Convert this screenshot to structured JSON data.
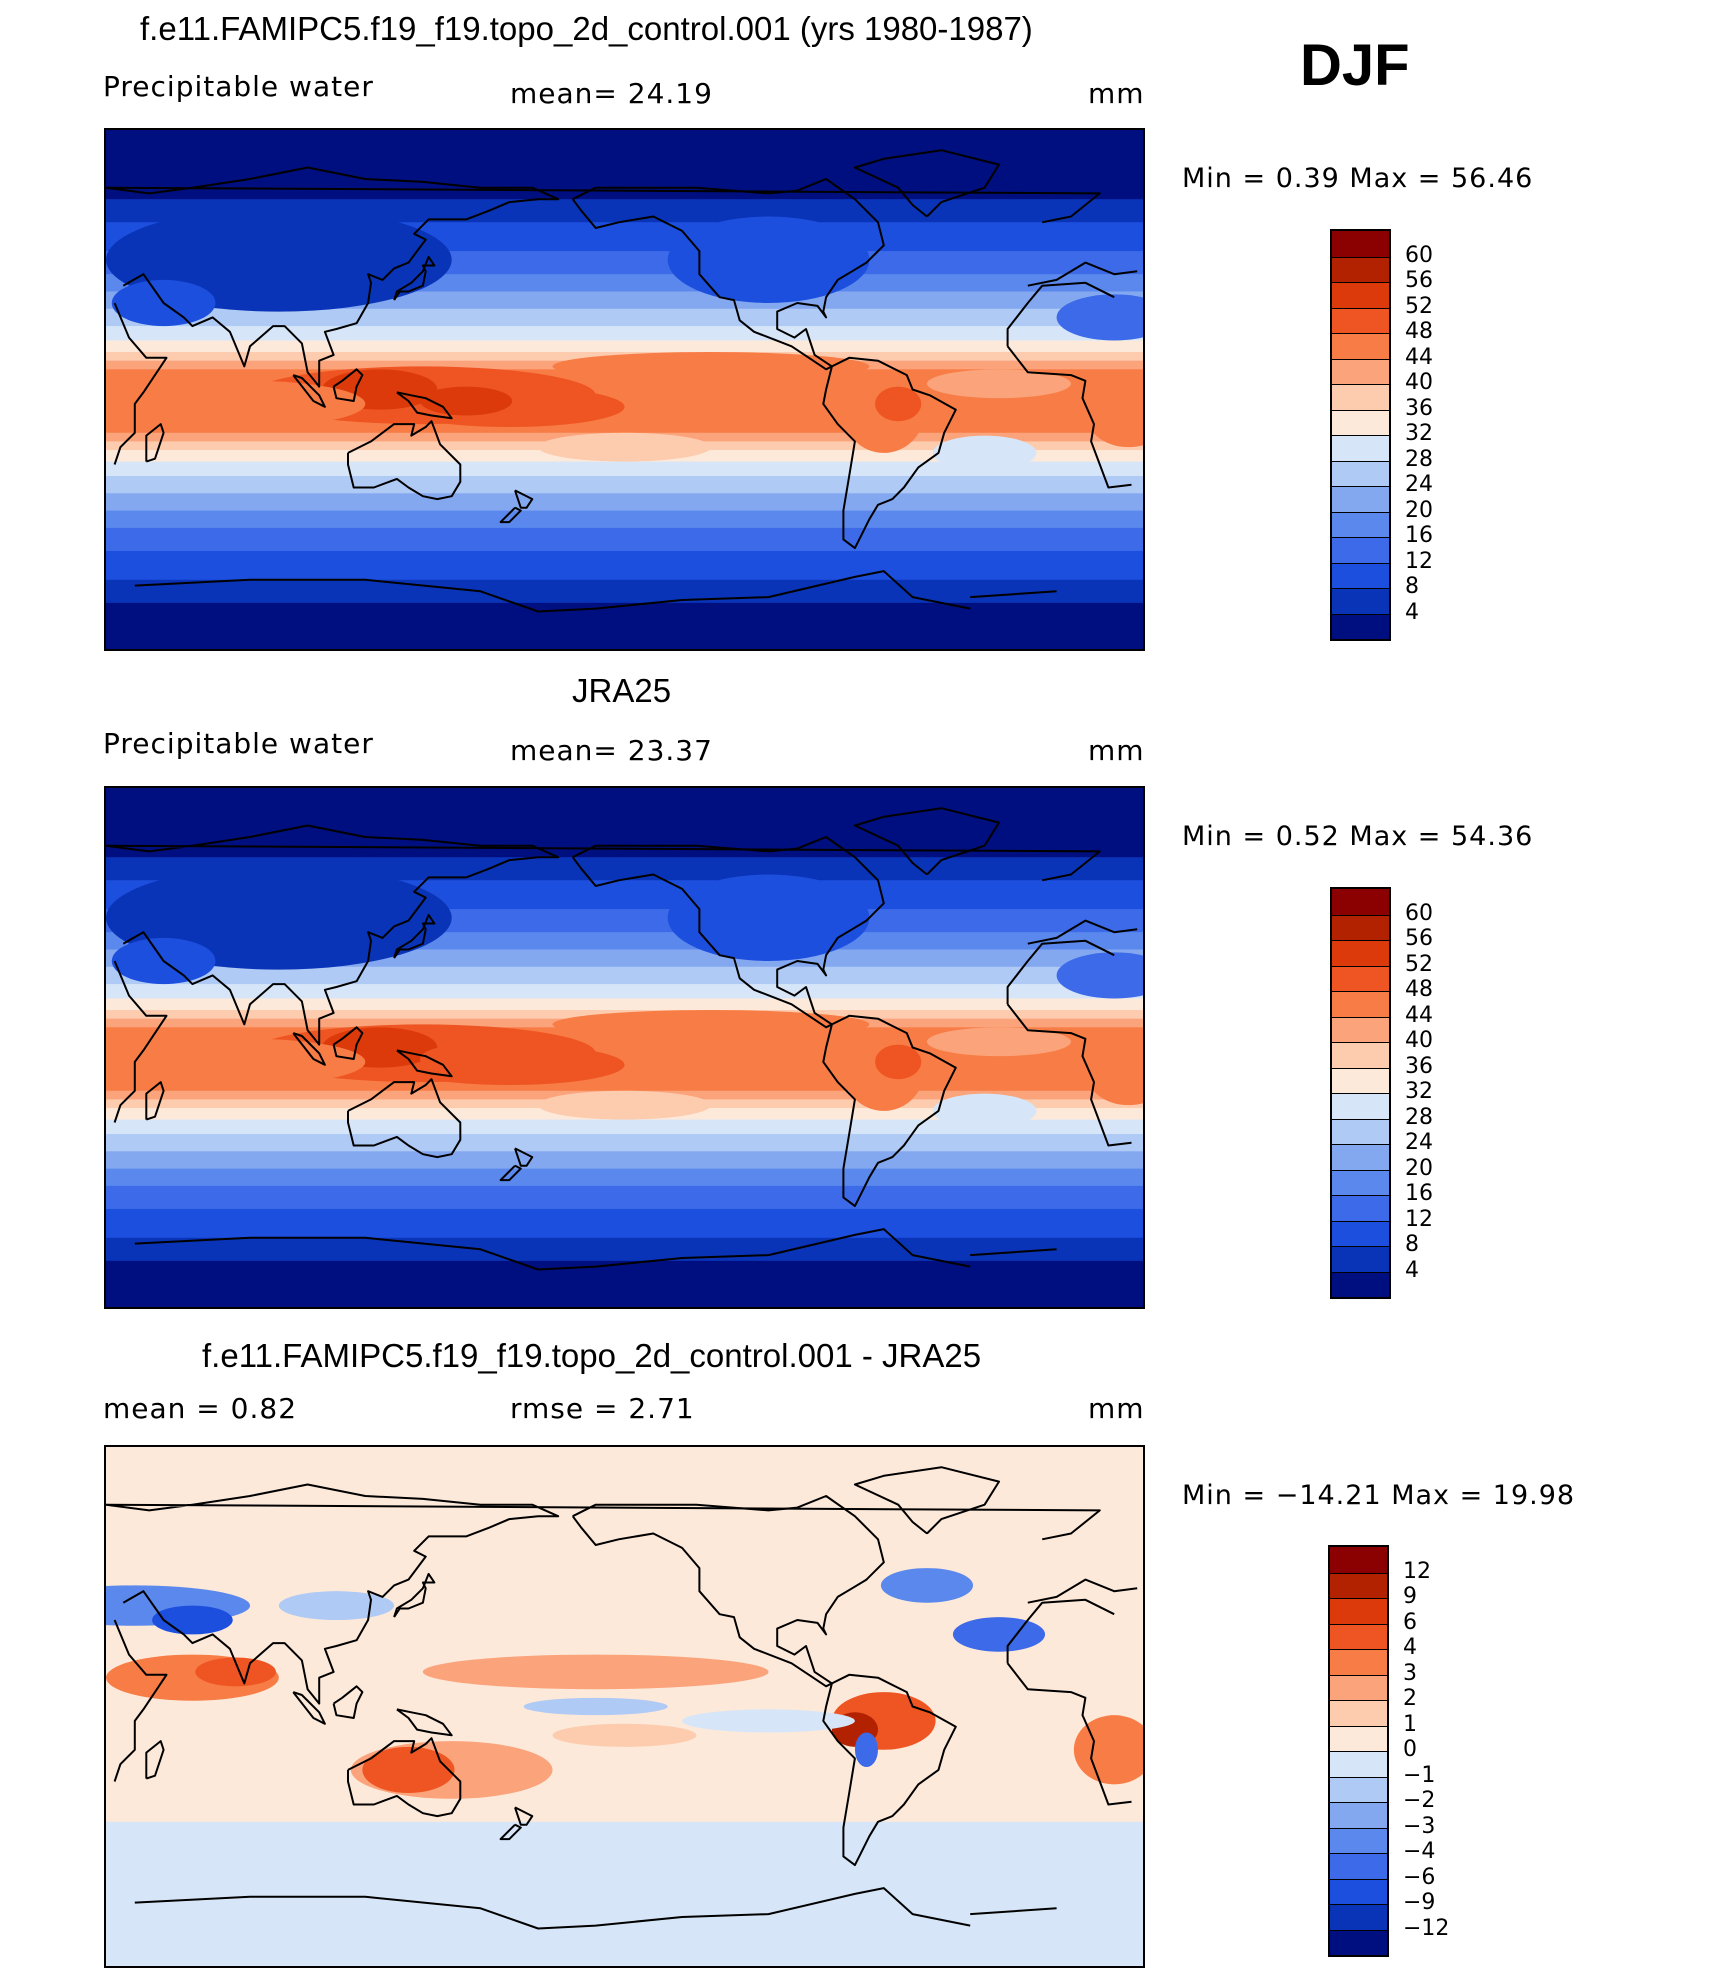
{
  "season_label": "DJF",
  "panels": [
    {
      "title": "f.e11.FAMIPC5.f19_f19.topo_2d_control.001 (yrs 1980-1987)",
      "left_label": "Precipitable  water",
      "center_label": "mean=   24.19",
      "units": "mm",
      "min_max": "Min  =     0.39  Max  =    56.46",
      "map": "model-climatology"
    },
    {
      "title": "JRA25",
      "left_label": "Precipitable  water",
      "center_label": "mean=   23.37",
      "units": "mm",
      "min_max": "Min  =     0.52  Max  =    54.36",
      "map": "obs-climatology"
    },
    {
      "title": "f.e11.FAMIPC5.f19_f19.topo_2d_control.001 - JRA25",
      "left_label": "mean  =     0.82",
      "center_label": "rmse  =     2.71",
      "units": "mm",
      "min_max": "Min  = −14.21  Max  =    19.98",
      "map": "difference"
    }
  ],
  "chart_data": [
    {
      "type": "heatmap",
      "title": "f.e11.FAMIPC5.f19_f19.topo_2d_control.001 (yrs 1980-1987)",
      "variable": "Precipitable water",
      "units": "mm",
      "mean": 24.19,
      "min": 0.39,
      "max": 56.46,
      "colorbar_levels": [
        "60",
        "56",
        "52",
        "48",
        "44",
        "40",
        "36",
        "32",
        "28",
        "24",
        "20",
        "16",
        "12",
        "8",
        "4"
      ],
      "colorbar_colors": [
        "#8b0000",
        "#b22200",
        "#dc3a0a",
        "#ee5522",
        "#f87c45",
        "#fba37b",
        "#fdccaf",
        "#fde9d9",
        "#d6e6f8",
        "#aecaf5",
        "#84a8f0",
        "#5a88ec",
        "#3c6ae8",
        "#1d4fde",
        "#0a34b8",
        "#000f80"
      ]
    },
    {
      "type": "heatmap",
      "title": "JRA25",
      "variable": "Precipitable water",
      "units": "mm",
      "mean": 23.37,
      "min": 0.52,
      "max": 54.36,
      "colorbar_levels": [
        "60",
        "56",
        "52",
        "48",
        "44",
        "40",
        "36",
        "32",
        "28",
        "24",
        "20",
        "16",
        "12",
        "8",
        "4"
      ],
      "colorbar_colors": [
        "#8b0000",
        "#b22200",
        "#dc3a0a",
        "#ee5522",
        "#f87c45",
        "#fba37b",
        "#fdccaf",
        "#fde9d9",
        "#d6e6f8",
        "#aecaf5",
        "#84a8f0",
        "#5a88ec",
        "#3c6ae8",
        "#1d4fde",
        "#0a34b8",
        "#000f80"
      ]
    },
    {
      "type": "heatmap",
      "title": "f.e11.FAMIPC5.f19_f19.topo_2d_control.001 - JRA25",
      "units": "mm",
      "mean": 0.82,
      "rmse": 2.71,
      "min": -14.21,
      "max": 19.98,
      "colorbar_levels": [
        "12",
        "9",
        "6",
        "4",
        "3",
        "2",
        "1",
        "0",
        "−1",
        "−2",
        "−3",
        "−4",
        "−6",
        "−9",
        "−12"
      ],
      "colorbar_colors": [
        "#8b0000",
        "#b22200",
        "#dc3a0a",
        "#ee5522",
        "#f87c45",
        "#fba37b",
        "#fdccaf",
        "#fde9d9",
        "#d6e6f8",
        "#aecaf5",
        "#84a8f0",
        "#5a88ec",
        "#3c6ae8",
        "#1d4fde",
        "#0a34b8",
        "#000f80"
      ]
    }
  ]
}
